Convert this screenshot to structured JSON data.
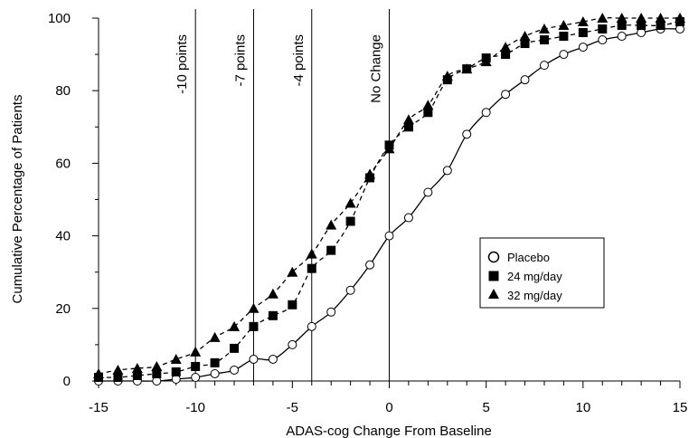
{
  "chart_data": {
    "type": "line",
    "title": "",
    "xlabel": "ADAS-cog Change From Baseline",
    "ylabel": "Cumulative  Percentage of Patients",
    "xlim": [
      -15,
      15
    ],
    "ylim": [
      0,
      100
    ],
    "x_ticks": [
      -15,
      -10,
      -5,
      0,
      5,
      10,
      15
    ],
    "y_ticks": [
      0,
      20,
      40,
      60,
      80,
      100
    ],
    "x_tick_labels": [
      "-15",
      "-10",
      "-5",
      "0",
      "5",
      "10",
      "15"
    ],
    "y_tick_labels": [
      "0",
      "20",
      "40",
      "60",
      "80",
      "100"
    ],
    "grid": false,
    "legend_position": "right",
    "reference_lines": [
      {
        "x": -10,
        "label": "-10 points"
      },
      {
        "x": -7,
        "label": "-7 points"
      },
      {
        "x": -4,
        "label": "-4 points"
      },
      {
        "x": 0,
        "label": "No Change"
      }
    ],
    "series": [
      {
        "name": "Placebo",
        "marker": "circle-open",
        "line": "solid",
        "x": [
          -15,
          -14,
          -13,
          -12,
          -11,
          -10,
          -9,
          -8,
          -7,
          -6,
          -5,
          -4,
          -3,
          -2,
          -1,
          0,
          1,
          2,
          3,
          4,
          5,
          6,
          7,
          8,
          9,
          10,
          11,
          12,
          13,
          14,
          15
        ],
        "y": [
          0,
          0,
          0,
          0,
          0.5,
          1,
          2,
          3,
          6,
          6,
          10,
          15,
          19,
          25,
          32,
          40,
          45,
          52,
          58,
          68,
          74,
          79,
          83,
          87,
          90,
          92,
          94,
          95,
          96,
          97,
          97
        ]
      },
      {
        "name": "24 mg/day",
        "marker": "square-filled",
        "line": "dashed",
        "x": [
          -15,
          -14,
          -13,
          -12,
          -11,
          -10,
          -9,
          -8,
          -7,
          -6,
          -5,
          -4,
          -3,
          -2,
          -1,
          0,
          1,
          2,
          3,
          4,
          5,
          6,
          7,
          8,
          9,
          10,
          11,
          12,
          13,
          14,
          15
        ],
        "y": [
          1,
          1,
          1.5,
          2,
          2.5,
          4,
          5,
          9,
          15,
          18,
          21,
          31,
          36,
          44,
          56,
          65,
          70,
          74,
          83,
          86,
          89,
          90,
          93,
          94,
          95,
          96,
          97,
          98,
          98,
          98,
          99
        ]
      },
      {
        "name": "32 mg/day",
        "marker": "triangle-filled",
        "line": "dashed",
        "x": [
          -15,
          -14,
          -13,
          -12,
          -11,
          -10,
          -9,
          -8,
          -7,
          -6,
          -5,
          -4,
          -3,
          -2,
          -1,
          0,
          1,
          2,
          3,
          4,
          5,
          6,
          7,
          8,
          9,
          10,
          11,
          12,
          13,
          14,
          15
        ],
        "y": [
          2,
          3,
          3.5,
          4,
          6,
          8,
          12,
          15,
          20,
          24,
          30,
          35,
          43,
          49,
          57,
          64,
          72,
          76,
          84,
          86,
          88,
          92,
          95,
          97,
          98,
          99,
          100,
          100,
          100,
          100,
          100
        ]
      }
    ]
  }
}
